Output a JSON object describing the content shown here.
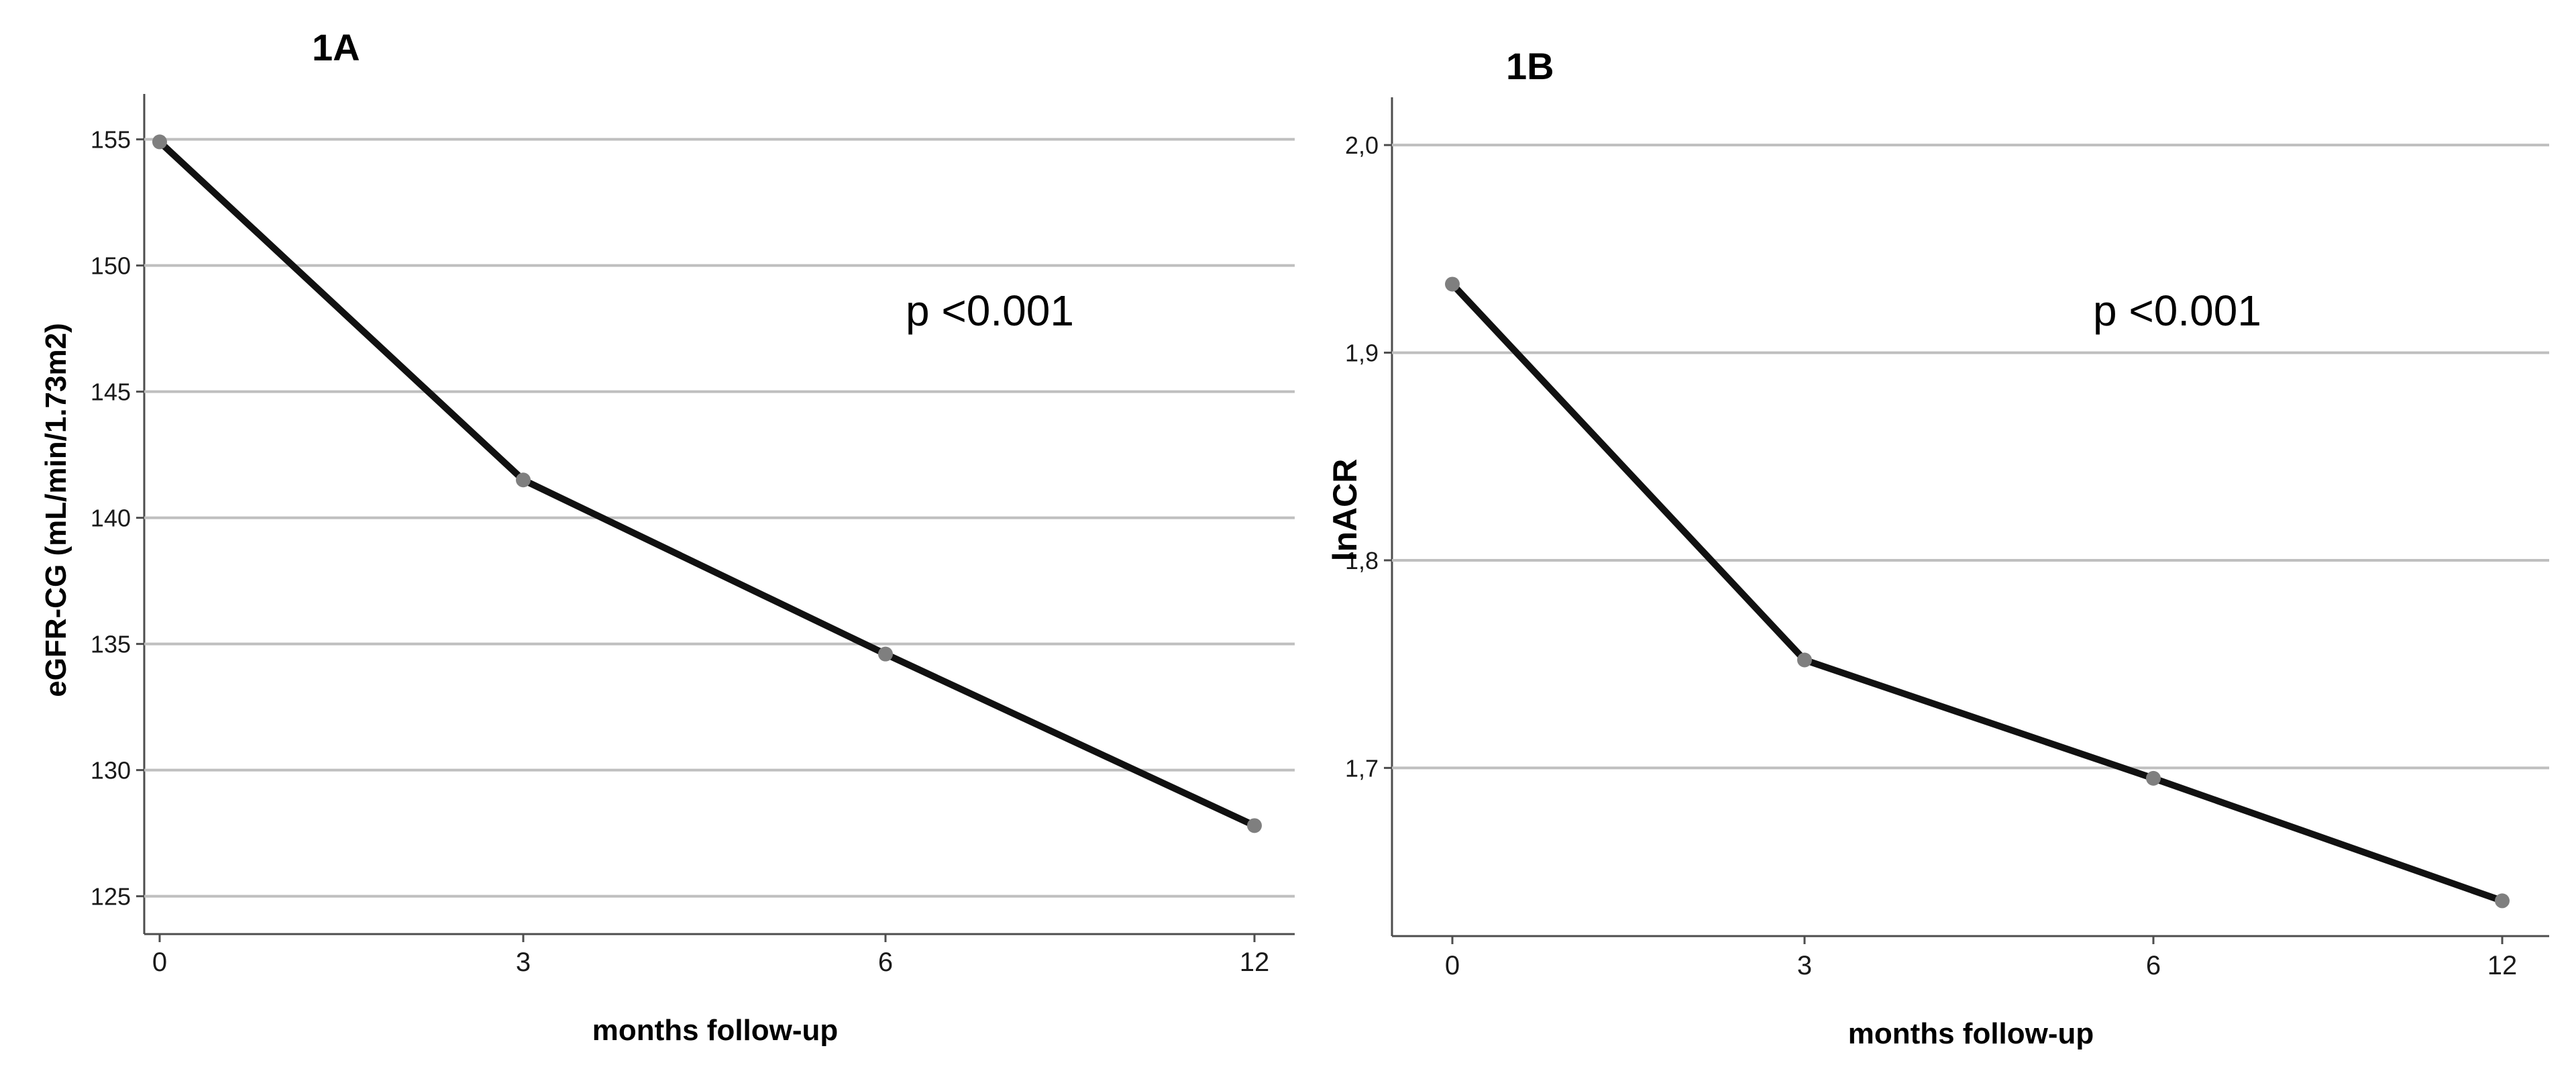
{
  "chart_data": [
    {
      "type": "line",
      "panel_label": "1A",
      "title": "",
      "xlabel": "months follow-up",
      "ylabel": "eGFR-CG (mL/min/1.73m2)",
      "x": [
        "0",
        "3",
        "6",
        "12"
      ],
      "y_ticks": [
        "125",
        "130",
        "135",
        "140",
        "145",
        "150",
        "155"
      ],
      "ylim": [
        123.5,
        156.8
      ],
      "grid": true,
      "series": [
        {
          "values": [
            154.9,
            141.5,
            134.6,
            127.8
          ]
        }
      ],
      "annotation": "p <0.001",
      "colors": {
        "line": "#111111",
        "marker": "#7f7f7f",
        "grid": "#bfbfbf"
      }
    },
    {
      "type": "line",
      "panel_label": "1B",
      "title": "",
      "xlabel": "months follow-up",
      "ylabel": "lnACR",
      "x": [
        "0",
        "3",
        "6",
        "12"
      ],
      "y_ticks": [
        "1,7",
        "1,8",
        "1,9",
        "2,0"
      ],
      "ylim": [
        1.619,
        2.023
      ],
      "grid": true,
      "series": [
        {
          "values": [
            1.933,
            1.752,
            1.695,
            1.636
          ]
        }
      ],
      "annotation": "p <0.001",
      "colors": {
        "line": "#111111",
        "marker": "#7f7f7f",
        "grid": "#bfbfbf"
      }
    }
  ]
}
